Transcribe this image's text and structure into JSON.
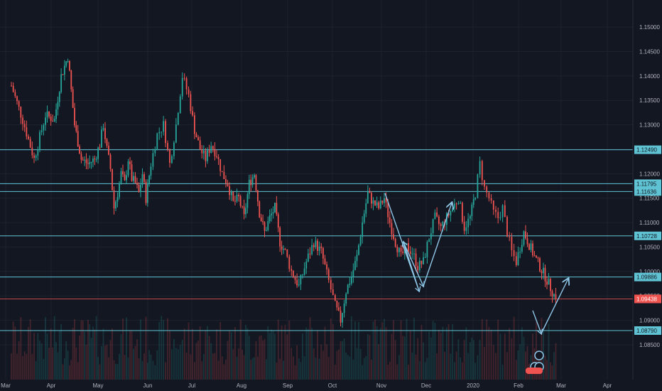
{
  "chart_data": {
    "type": "candlestick",
    "instrument": "",
    "x_axis_labels": [
      "Mar",
      "Apr",
      "May",
      "Jun",
      "Jul",
      "Aug",
      "Sep",
      "Oct",
      "Nov",
      "Dec",
      "2020",
      "Feb",
      "Mar",
      "Apr"
    ],
    "y_axis_ticks": [
      "1.15000",
      "1.14500",
      "1.14000",
      "1.13500",
      "1.13000",
      "1.12500",
      "1.12000",
      "1.11500",
      "1.11000",
      "1.10500",
      "1.10000",
      "1.09500",
      "1.09000",
      "1.08500"
    ],
    "ylim": [
      1.0815,
      1.1535
    ],
    "grid": true,
    "colors": {
      "background": "#131722",
      "up": "#26a69a",
      "down": "#ef5350",
      "level": "#5fc3d3",
      "arrow": "#8fc7e8",
      "grid": "#1e222d"
    },
    "horizontal_levels": [
      {
        "label": "1.12490",
        "value": 1.1249
      },
      {
        "label": "1.11795",
        "value": 1.11795
      },
      {
        "label": "1.11636",
        "value": 1.11636
      },
      {
        "label": "1.10728",
        "value": 1.10728
      },
      {
        "label": "1.09886",
        "value": 1.09886
      },
      {
        "label": "1.08790",
        "value": 1.0879
      }
    ],
    "current_price": {
      "label": "1.09438",
      "value": 1.09438,
      "color": "#ef5350"
    },
    "price_path": [
      [
        "Mar",
        1.138
      ],
      [
        "Mar",
        1.131
      ],
      [
        "Mar",
        1.123
      ],
      [
        "Mar",
        1.132
      ],
      [
        "Apr",
        1.131
      ],
      [
        "Apr",
        1.14
      ],
      [
        "Apr",
        1.144
      ],
      [
        "Apr",
        1.13
      ],
      [
        "Apr",
        1.123
      ],
      [
        "Apr",
        1.122
      ],
      [
        "Apr",
        1.123
      ],
      [
        "May",
        1.126
      ],
      [
        "May",
        1.13
      ],
      [
        "May",
        1.125
      ],
      [
        "May",
        1.121
      ],
      [
        "May",
        1.113
      ],
      [
        "May",
        1.116
      ],
      [
        "May",
        1.12
      ],
      [
        "May",
        1.118
      ],
      [
        "May",
        1.123
      ],
      [
        "May",
        1.119
      ],
      [
        "May",
        1.118
      ],
      [
        "May",
        1.116
      ],
      [
        "May",
        1.12
      ],
      [
        "May",
        1.115
      ],
      [
        "Jun",
        1.122
      ],
      [
        "Jun",
        1.128
      ],
      [
        "Jun",
        1.13
      ],
      [
        "Jun",
        1.122
      ],
      [
        "Jun",
        1.13
      ],
      [
        "Jun",
        1.14
      ],
      [
        "Jun",
        1.136
      ],
      [
        "Jul",
        1.129
      ],
      [
        "Jul",
        1.125
      ],
      [
        "Jul",
        1.123
      ],
      [
        "Jul",
        1.126
      ],
      [
        "Jul",
        1.124
      ],
      [
        "Jul",
        1.12
      ],
      [
        "Jul",
        1.118
      ],
      [
        "Jul",
        1.114
      ],
      [
        "Jul",
        1.115
      ],
      [
        "Aug",
        1.111
      ],
      [
        "Aug",
        1.118
      ],
      [
        "Aug",
        1.12
      ],
      [
        "Aug",
        1.112
      ],
      [
        "Aug",
        1.108
      ],
      [
        "Aug",
        1.111
      ],
      [
        "Aug",
        1.113
      ],
      [
        "Aug",
        1.106
      ],
      [
        "Aug",
        1.104
      ],
      [
        "Sep",
        1.1
      ],
      [
        "Sep",
        1.097
      ],
      [
        "Sep",
        1.102
      ],
      [
        "Sep",
        1.106
      ],
      [
        "Sep",
        1.104
      ],
      [
        "Sep",
        1.098
      ],
      [
        "Oct",
        1.093
      ],
      [
        "Oct",
        1.09
      ],
      [
        "Oct",
        1.096
      ],
      [
        "Oct",
        1.099
      ],
      [
        "Oct",
        1.103
      ],
      [
        "Oct",
        1.11
      ],
      [
        "Oct",
        1.116
      ],
      [
        "Oct",
        1.114
      ],
      [
        "Oct",
        1.113
      ],
      [
        "Nov",
        1.115
      ],
      [
        "Nov",
        1.11
      ],
      [
        "Nov",
        1.106
      ],
      [
        "Nov",
        1.103
      ],
      [
        "Nov",
        1.105
      ],
      [
        "Nov",
        1.104
      ],
      [
        "Nov",
        1.101
      ],
      [
        "Nov",
        1.102
      ],
      [
        "Dec",
        1.107
      ],
      [
        "Dec",
        1.111
      ],
      [
        "Dec",
        1.109
      ],
      [
        "Dec",
        1.111
      ],
      [
        "Dec",
        1.113
      ],
      [
        "Dec",
        1.115
      ],
      [
        "Dec",
        1.109
      ],
      [
        "Dec",
        1.111
      ],
      [
        "2020",
        1.116
      ],
      [
        "2020",
        1.122
      ],
      [
        "2020",
        1.117
      ],
      [
        "2020",
        1.115
      ],
      [
        "2020",
        1.112
      ],
      [
        "2020",
        1.111
      ],
      [
        "2020",
        1.113
      ],
      [
        "2020",
        1.108
      ],
      [
        "2020",
        1.104
      ],
      [
        "2020",
        1.102
      ],
      [
        "Feb",
        1.108
      ],
      [
        "Feb",
        1.103
      ],
      [
        "Feb",
        1.099
      ],
      [
        "Feb",
        1.09438
      ]
    ],
    "annotation_arrows": [
      {
        "points": [
          [
            "Nov",
            1.116
          ],
          [
            "Nov",
            1.096
          ],
          [
            "Nov",
            1.106
          ],
          [
            "Dec",
            1.097
          ],
          [
            "Dec",
            1.114
          ]
        ]
      },
      {
        "points": [
          [
            "Feb",
            1.092
          ],
          [
            "Feb",
            1.0873
          ],
          [
            "Mar",
            1.0985
          ]
        ]
      }
    ]
  }
}
